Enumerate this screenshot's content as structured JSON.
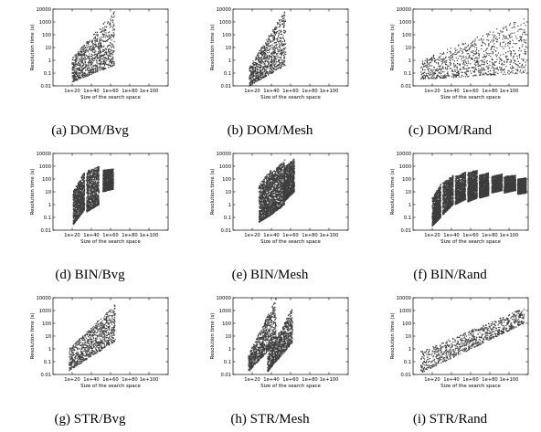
{
  "figure": {
    "panels": [
      {
        "id": "a",
        "caption": "(a) DOM/Bvg"
      },
      {
        "id": "b",
        "caption": "(b) DOM/Mesh"
      },
      {
        "id": "c",
        "caption": "(c) DOM/Rand"
      },
      {
        "id": "d",
        "caption": "(d) BIN/Bvg"
      },
      {
        "id": "e",
        "caption": "(e) BIN/Mesh"
      },
      {
        "id": "f",
        "caption": "(f) BIN/Rand"
      },
      {
        "id": "g",
        "caption": "(g) STR/Bvg"
      },
      {
        "id": "h",
        "caption": "(h) STR/Mesh"
      },
      {
        "id": "i",
        "caption": "(i) STR/Rand"
      }
    ]
  },
  "colors": {
    "points": "#3d3d3d",
    "axis": "#000000",
    "background": "#ffffff"
  },
  "chart_data": [
    {
      "panel": "a",
      "type": "scatter",
      "xlabel": "Size of the search space",
      "ylabel": "Resolution time (s)",
      "x_scale": "log",
      "y_scale": "log",
      "xlim": [
        1.0,
        1e+120
      ],
      "ylim": [
        0.01,
        10000
      ],
      "x_ticks": [
        "1e+20",
        "1e+40",
        "1e+60",
        "1e+80",
        "1e+100"
      ],
      "y_ticks": [
        "0.01",
        "0.1",
        "1",
        "10",
        "100",
        "1000",
        "10000"
      ],
      "point_clusters": [
        {
          "x_exp": [
            20,
            64
          ],
          "y_log_bottom": [
            -1.7,
            -0.4
          ],
          "y_log_top": [
            0.2,
            3.8
          ],
          "density": 1.0
        }
      ]
    },
    {
      "panel": "b",
      "type": "scatter",
      "xlabel": "Size of the search space",
      "ylabel": "Resolution time (s)",
      "x_scale": "log",
      "y_scale": "log",
      "xlim": [
        1.0,
        1e+120
      ],
      "ylim": [
        0.01,
        10000
      ],
      "x_ticks": [
        "1e+20",
        "1e+40",
        "1e+60",
        "1e+80",
        "1e+100"
      ],
      "y_ticks": [
        "0.01",
        "0.1",
        "1",
        "10",
        "100",
        "1000",
        "10000"
      ],
      "point_clusters": [
        {
          "x_exp": [
            17,
            55
          ],
          "y_log_bottom": [
            -2.0,
            -0.4
          ],
          "y_log_top": [
            -0.5,
            4.0
          ],
          "density": 1.0
        }
      ]
    },
    {
      "panel": "c",
      "type": "scatter",
      "xlabel": "Size of the search space",
      "ylabel": "Resolution time (s)",
      "x_scale": "log",
      "y_scale": "log",
      "xlim": [
        1.0,
        1e+120
      ],
      "ylim": [
        0.01,
        10000
      ],
      "x_ticks": [
        "1e+20",
        "1e+40",
        "1e+60",
        "1e+80",
        "1e+100"
      ],
      "y_ticks": [
        "0.01",
        "0.1",
        "1",
        "10",
        "100",
        "1000",
        "10000"
      ],
      "point_clusters": [
        {
          "x_exp": [
            8,
            118
          ],
          "y_log_bottom": [
            -1.5,
            -1.0
          ],
          "y_log_top": [
            0.0,
            3.4
          ],
          "density": 1.0
        }
      ]
    },
    {
      "panel": "d",
      "type": "scatter",
      "xlabel": "Size of the search space",
      "ylabel": "Resolution time (s)",
      "x_scale": "log",
      "y_scale": "log",
      "xlim": [
        1.0,
        1e+120
      ],
      "ylim": [
        0.01,
        10000
      ],
      "x_ticks": [
        "1e+20",
        "1e+40",
        "1e+60",
        "1e+80",
        "1e+100"
      ],
      "y_ticks": [
        "0.01",
        "0.1",
        "1",
        "10",
        "100",
        "1000",
        "10000"
      ],
      "point_clusters": [
        {
          "x_exp": [
            21,
            33
          ],
          "y_log_bottom": [
            -1.6,
            -0.4
          ],
          "y_log_top": [
            1.0,
            2.6
          ],
          "density": 1.0
        },
        {
          "x_exp": [
            35,
            48
          ],
          "y_log_bottom": [
            -0.6,
            0.0
          ],
          "y_log_top": [
            2.6,
            3.0
          ],
          "density": 1.0
        },
        {
          "x_exp": [
            52,
            63
          ],
          "y_log_bottom": [
            1.0,
            1.2
          ],
          "y_log_top": [
            2.7,
            2.8
          ],
          "density": 1.0
        }
      ]
    },
    {
      "panel": "e",
      "type": "scatter",
      "xlabel": "Size of the search space",
      "ylabel": "Resolution time (s)",
      "x_scale": "log",
      "y_scale": "log",
      "xlim": [
        1.0,
        1e+120
      ],
      "ylim": [
        0.01,
        10000
      ],
      "x_ticks": [
        "1e+20",
        "1e+40",
        "1e+60",
        "1e+80",
        "1e+100"
      ],
      "y_ticks": [
        "0.01",
        "0.1",
        "1",
        "10",
        "100",
        "1000",
        "10000"
      ],
      "point_clusters": [
        {
          "x_exp": [
            27,
            40
          ],
          "y_log_bottom": [
            -1.4,
            -0.8
          ],
          "y_log_top": [
            1.5,
            2.8
          ],
          "density": 1.0
        },
        {
          "x_exp": [
            40,
            54
          ],
          "y_log_bottom": [
            -0.8,
            0.0
          ],
          "y_log_top": [
            2.5,
            3.5
          ],
          "density": 1.0
        },
        {
          "x_exp": [
            53,
            64
          ],
          "y_log_bottom": [
            0.2,
            1.0
          ],
          "y_log_top": [
            2.9,
            3.6
          ],
          "density": 1.0
        }
      ]
    },
    {
      "panel": "f",
      "type": "scatter",
      "xlabel": "Size of the search space",
      "ylabel": "Resolution time (s)",
      "x_scale": "log",
      "y_scale": "log",
      "xlim": [
        1.0,
        1e+120
      ],
      "ylim": [
        0.01,
        10000
      ],
      "x_ticks": [
        "1e+20",
        "1e+40",
        "1e+60",
        "1e+80",
        "1e+100"
      ],
      "y_ticks": [
        "0.01",
        "0.1",
        "1",
        "10",
        "100",
        "1000",
        "10000"
      ],
      "point_clusters": [
        {
          "x_exp": [
            20,
            29
          ],
          "y_log_bottom": [
            -1.7,
            -1.0
          ],
          "y_log_top": [
            0.5,
            1.6
          ],
          "density": 1.0
        },
        {
          "x_exp": [
            31,
            42
          ],
          "y_log_bottom": [
            -0.8,
            0.0
          ],
          "y_log_top": [
            1.7,
            2.3
          ],
          "density": 1.0
        },
        {
          "x_exp": [
            44,
            55
          ],
          "y_log_bottom": [
            0.0,
            0.4
          ],
          "y_log_top": [
            2.2,
            2.6
          ],
          "density": 1.0
        },
        {
          "x_exp": [
            57,
            67
          ],
          "y_log_bottom": [
            0.2,
            0.5
          ],
          "y_log_top": [
            2.5,
            2.7
          ],
          "density": 1.0
        },
        {
          "x_exp": [
            69,
            79
          ],
          "y_log_bottom": [
            0.5,
            0.7
          ],
          "y_log_top": [
            2.3,
            2.5
          ],
          "density": 1.0
        },
        {
          "x_exp": [
            82,
            93
          ],
          "y_log_bottom": [
            0.9,
            1.1
          ],
          "y_log_top": [
            2.2,
            2.4
          ],
          "density": 1.0
        },
        {
          "x_exp": [
            95,
            107
          ],
          "y_log_bottom": [
            0.9,
            1.1
          ],
          "y_log_top": [
            2.2,
            2.3
          ],
          "density": 1.0
        },
        {
          "x_exp": [
            109,
            118
          ],
          "y_log_bottom": [
            0.8,
            0.9
          ],
          "y_log_top": [
            2.0,
            2.1
          ],
          "density": 1.0
        }
      ]
    },
    {
      "panel": "g",
      "type": "scatter",
      "xlabel": "Size of the search space",
      "ylabel": "Resolution time (s)",
      "x_scale": "log",
      "y_scale": "log",
      "xlim": [
        1.0,
        1e+120
      ],
      "ylim": [
        0.01,
        10000
      ],
      "x_ticks": [
        "1e+20",
        "1e+40",
        "1e+60",
        "1e+80",
        "1e+100"
      ],
      "y_ticks": [
        "0.01",
        "0.1",
        "1",
        "10",
        "100",
        "1000",
        "10000"
      ],
      "point_clusters": [
        {
          "x_exp": [
            17,
            65
          ],
          "y_log_bottom": [
            -1.7,
            0.6
          ],
          "y_log_top": [
            0.0,
            3.5
          ],
          "density": 1.0
        }
      ]
    },
    {
      "panel": "h",
      "type": "scatter",
      "xlabel": "Size of the search space",
      "ylabel": "Resolution time (s)",
      "x_scale": "log",
      "y_scale": "log",
      "xlim": [
        1.0,
        1e+120
      ],
      "ylim": [
        0.01,
        10000
      ],
      "x_ticks": [
        "1e+20",
        "1e+40",
        "1e+60",
        "1e+80",
        "1e+100"
      ],
      "y_ticks": [
        "0.01",
        "0.1",
        "1",
        "10",
        "100",
        "1000",
        "10000"
      ],
      "point_clusters": [
        {
          "x_exp": [
            16,
            45
          ],
          "y_log_bottom": [
            -1.8,
            0.5
          ],
          "y_log_top": [
            -0.5,
            4.0
          ],
          "density": 1.0
        },
        {
          "x_exp": [
            36,
            62
          ],
          "y_log_bottom": [
            -1.8,
            0.5
          ],
          "y_log_top": [
            -0.5,
            3.3
          ],
          "density": 1.0
        }
      ]
    },
    {
      "panel": "i",
      "type": "scatter",
      "xlabel": "Size of the search space",
      "ylabel": "Resolution time (s)",
      "x_scale": "log",
      "y_scale": "log",
      "xlim": [
        1.0,
        1e+120
      ],
      "ylim": [
        0.01,
        10000
      ],
      "x_ticks": [
        "1e+20",
        "1e+40",
        "1e+60",
        "1e+80",
        "1e+100"
      ],
      "y_ticks": [
        "0.01",
        "0.1",
        "1",
        "10",
        "100",
        "1000",
        "10000"
      ],
      "point_clusters": [
        {
          "x_exp": [
            8,
            116
          ],
          "y_log_bottom": [
            -1.9,
            2.0
          ],
          "y_log_top": [
            -0.2,
            3.2
          ],
          "density": 1.0
        }
      ]
    }
  ]
}
